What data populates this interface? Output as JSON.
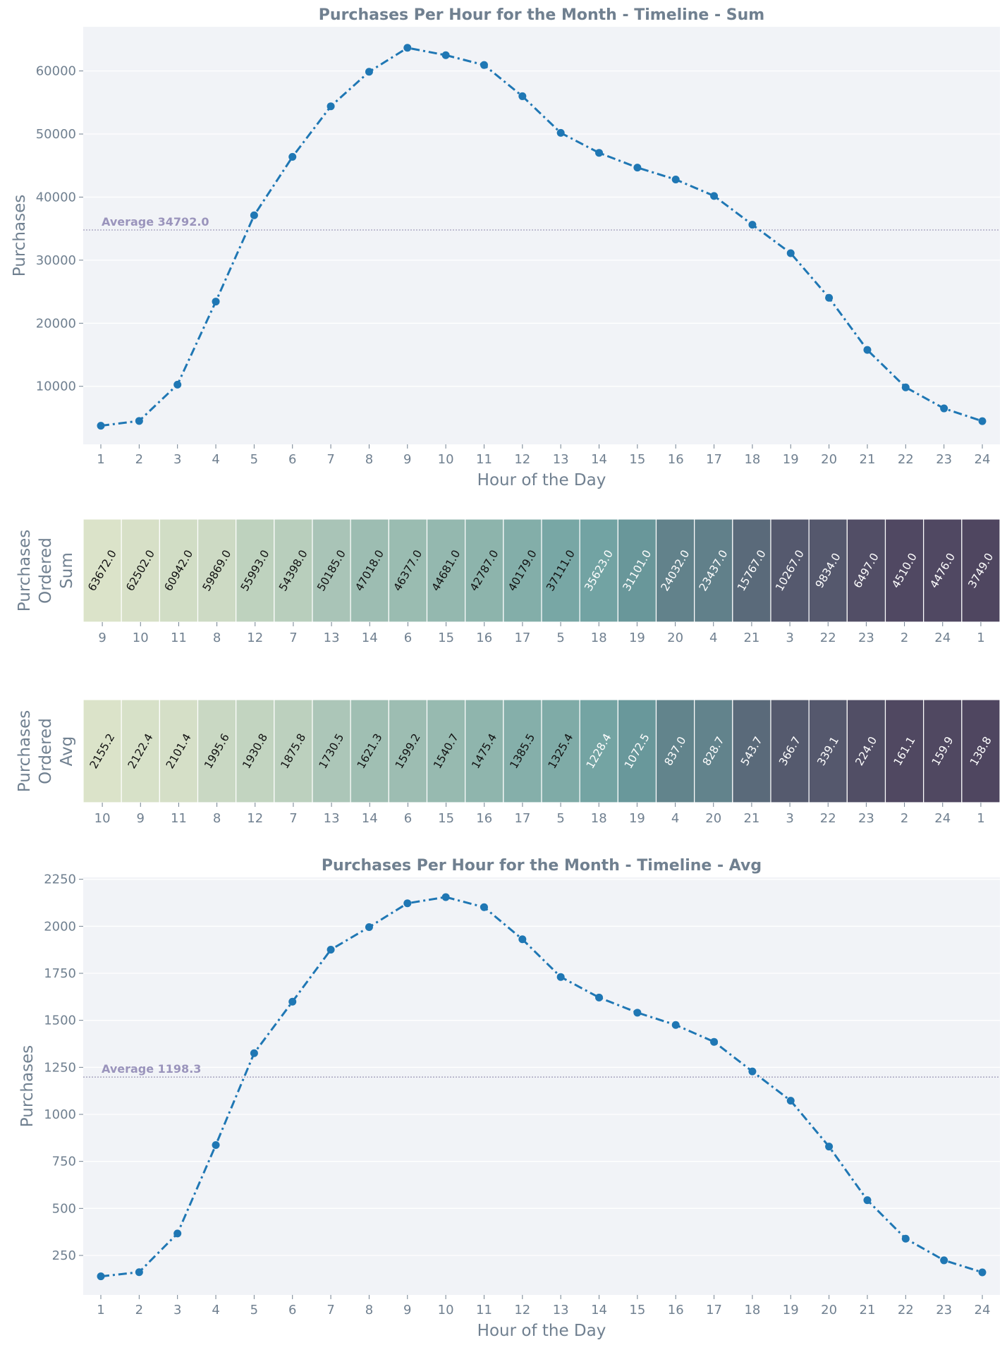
{
  "colors": {
    "plot_bg": "#f1f3f7",
    "grid": "#ffffff",
    "line": "#1f77b4",
    "text": "#708090",
    "avg_line": "#a8a4c0",
    "avg_label": "#9a94bc",
    "heat_low": "#4f4660",
    "heat_mid": "#6b9fa0",
    "heat_high": "#dbe3c9"
  },
  "chart_data": [
    {
      "type": "line",
      "title": "Purchases Per Hour for the Month - Timeline - Sum",
      "xlabel": "Hour of the Day",
      "ylabel": "Purchases",
      "x": [
        1,
        2,
        3,
        4,
        5,
        6,
        7,
        8,
        9,
        10,
        11,
        12,
        13,
        14,
        15,
        16,
        17,
        18,
        19,
        20,
        21,
        22,
        23,
        24
      ],
      "values": [
        3749,
        4510,
        10267,
        23437,
        37111,
        46377,
        54398,
        59869,
        63672,
        62502,
        60942,
        55993,
        50185,
        47018,
        44681,
        42787,
        40179,
        35623,
        31101,
        24032,
        15767,
        9834,
        6497,
        4476
      ],
      "ylim": [
        800,
        67000
      ],
      "yticks": [
        10000,
        20000,
        30000,
        40000,
        50000,
        60000
      ],
      "grid": true,
      "line_style": "dash-dot",
      "average": 34792.0,
      "average_label": "Average 34792.0"
    },
    {
      "type": "heatmap",
      "ylabel_lines": [
        "Purchases",
        "Ordered",
        "Sum"
      ],
      "categories": [
        "9",
        "10",
        "11",
        "8",
        "12",
        "7",
        "13",
        "14",
        "6",
        "15",
        "16",
        "17",
        "5",
        "18",
        "19",
        "20",
        "4",
        "21",
        "3",
        "22",
        "23",
        "2",
        "24",
        "1"
      ],
      "values": [
        63672.0,
        62502.0,
        60942.0,
        59869.0,
        55993.0,
        54398.0,
        50185.0,
        47018.0,
        46377.0,
        44681.0,
        42787.0,
        40179.0,
        37111.0,
        35623.0,
        31101.0,
        24032.0,
        23437.0,
        15767.0,
        10267.0,
        9834.0,
        6497.0,
        4510.0,
        4476.0,
        3749.0
      ],
      "labels": [
        "63672.0",
        "62502.0",
        "60942.0",
        "59869.0",
        "55993.0",
        "54398.0",
        "50185.0",
        "47018.0",
        "46377.0",
        "44681.0",
        "42787.0",
        "40179.0",
        "37111.0",
        "35623.0",
        "31101.0",
        "24032.0",
        "23437.0",
        "15767.0",
        "10267.0",
        "9834.0",
        "6497.0",
        "4510.0",
        "4476.0",
        "3749.0"
      ]
    },
    {
      "type": "heatmap",
      "ylabel_lines": [
        "Purchases",
        "Ordered",
        "Avg"
      ],
      "categories": [
        "10",
        "9",
        "11",
        "8",
        "12",
        "7",
        "13",
        "14",
        "6",
        "15",
        "16",
        "17",
        "5",
        "18",
        "19",
        "4",
        "20",
        "21",
        "3",
        "22",
        "23",
        "2",
        "24",
        "1"
      ],
      "values": [
        2155.2,
        2122.4,
        2101.4,
        1995.6,
        1930.8,
        1875.8,
        1730.5,
        1621.3,
        1599.2,
        1540.7,
        1475.4,
        1385.5,
        1325.4,
        1228.4,
        1072.5,
        837.0,
        828.7,
        543.7,
        366.7,
        339.1,
        224.0,
        161.1,
        159.9,
        138.8
      ],
      "labels": [
        "2155.2",
        "2122.4",
        "2101.4",
        "1995.6",
        "1930.8",
        "1875.8",
        "1730.5",
        "1621.3",
        "1599.2",
        "1540.7",
        "1475.4",
        "1385.5",
        "1325.4",
        "1228.4",
        "1072.5",
        "837.0",
        "828.7",
        "543.7",
        "366.7",
        "339.1",
        "224.0",
        "161.1",
        "159.9",
        "138.8"
      ]
    },
    {
      "type": "line",
      "title": "Purchases Per Hour for the Month - Timeline - Avg",
      "xlabel": "Hour of the Day",
      "ylabel": "Purchases",
      "x": [
        1,
        2,
        3,
        4,
        5,
        6,
        7,
        8,
        9,
        10,
        11,
        12,
        13,
        14,
        15,
        16,
        17,
        18,
        19,
        20,
        21,
        22,
        23,
        24
      ],
      "values": [
        138.8,
        161.1,
        366.7,
        837.0,
        1325.4,
        1599.2,
        1875.8,
        1995.6,
        2122.4,
        2155.2,
        2101.4,
        1930.8,
        1730.5,
        1621.3,
        1540.7,
        1475.4,
        1385.5,
        1228.4,
        1072.5,
        828.7,
        543.7,
        339.1,
        224.0,
        159.9
      ],
      "ylim": [
        40,
        2260
      ],
      "yticks": [
        250,
        500,
        750,
        1000,
        1250,
        1500,
        1750,
        2000,
        2250
      ],
      "grid": true,
      "line_style": "dash-dot",
      "average": 1198.3,
      "average_label": "Average 1198.3"
    }
  ]
}
